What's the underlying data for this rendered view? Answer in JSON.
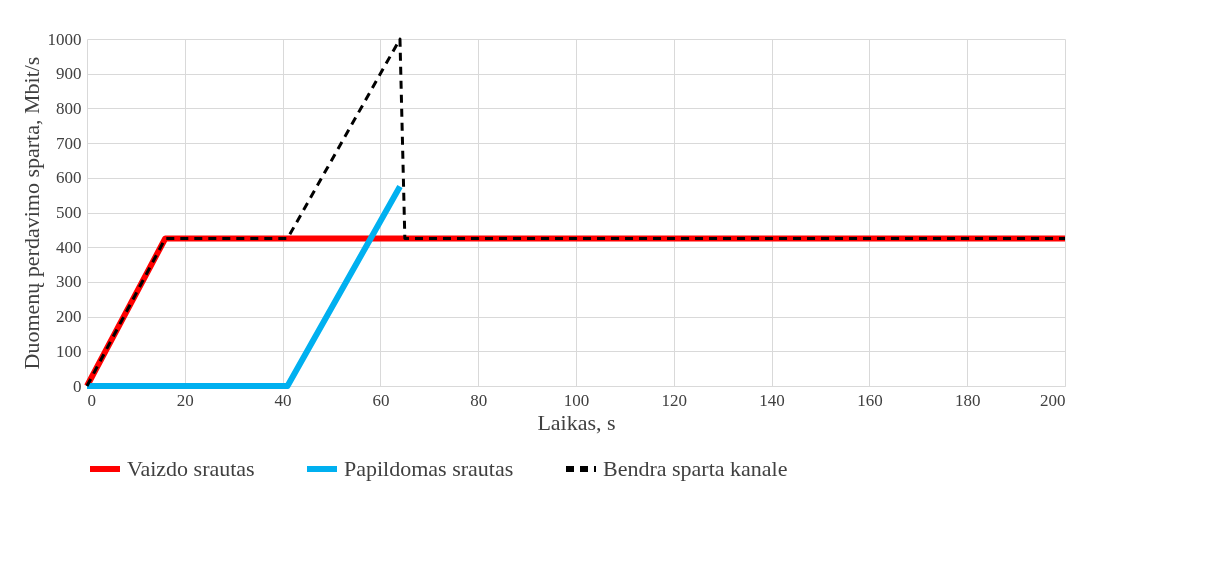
{
  "chart_data": {
    "type": "line",
    "xlabel": "Laikas, s",
    "ylabel": "Duomenų perdavimo sparta, Mbit/s",
    "xlim": [
      0,
      200
    ],
    "xticks": [
      0,
      20,
      40,
      60,
      80,
      100,
      120,
      140,
      160,
      180,
      200
    ],
    "ylim": [
      0,
      1000
    ],
    "yticks": [
      0,
      100,
      200,
      300,
      400,
      500,
      600,
      700,
      800,
      900,
      1000
    ],
    "grid": true,
    "legend": "bottom",
    "marker": "none",
    "series": [
      {
        "name": "Vaizdo srautas",
        "color": "#ff0000",
        "line_style": "solid",
        "x": [
          0,
          16,
          200
        ],
        "values": [
          0,
          425,
          425
        ]
      },
      {
        "name": "Papildomas srautas",
        "color": "#00b0f0",
        "line_style": "solid",
        "x": [
          0,
          41,
          64
        ],
        "values": [
          0,
          0,
          575
        ]
      },
      {
        "name": "Bendra sparta kanale",
        "color": "#000000",
        "line_style": "dashed",
        "x": [
          0,
          16,
          41,
          64,
          65,
          200
        ],
        "values": [
          0,
          425,
          425,
          1000,
          425,
          425
        ]
      }
    ]
  }
}
